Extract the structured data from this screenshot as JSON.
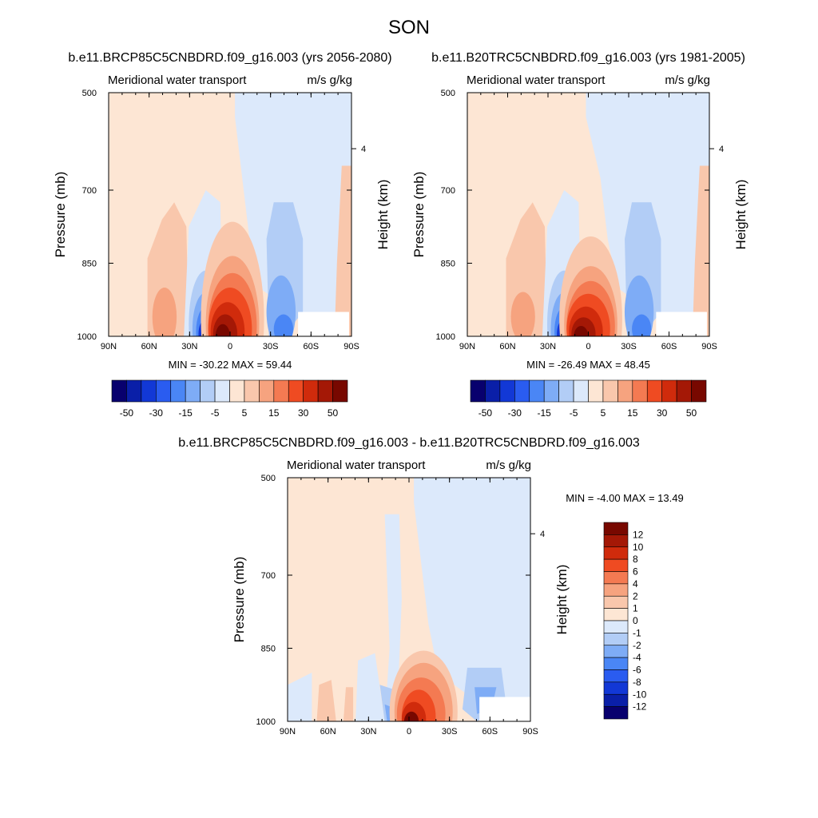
{
  "main_title": "SON",
  "chart_data": [
    {
      "type": "heatmap",
      "title": "b.e11.BRCP85C5CNBDRD.f09_g16.003 (yrs 2056-2080)",
      "left_label": "Meridional water transport",
      "right_label": "m/s g/kg",
      "ylabel": "Pressure (mb)",
      "ylabel_right": "Height (km)",
      "y_ticks": [
        "500",
        "700",
        "850",
        "1000"
      ],
      "y_right_ticks": [
        "4"
      ],
      "x_ticks": [
        "90N",
        "60N",
        "30N",
        "0",
        "30S",
        "60S",
        "90S"
      ],
      "stats": "MIN = -30.22  MAX =  59.44",
      "min": -30.22,
      "max": 59.44
    },
    {
      "type": "heatmap",
      "title": "b.e11.B20TRC5CNBDRD.f09_g16.003 (yrs 1981-2005)",
      "left_label": "Meridional water transport",
      "right_label": "m/s g/kg",
      "ylabel": "Pressure (mb)",
      "ylabel_right": "Height (km)",
      "y_ticks": [
        "500",
        "700",
        "850",
        "1000"
      ],
      "y_right_ticks": [
        "4"
      ],
      "x_ticks": [
        "90N",
        "60N",
        "30N",
        "0",
        "30S",
        "60S",
        "90S"
      ],
      "stats": "MIN = -26.49  MAX =  48.45",
      "min": -26.49,
      "max": 48.45
    },
    {
      "type": "heatmap",
      "title": "b.e11.BRCP85C5CNBDRD.f09_g16.003 - b.e11.B20TRC5CNBDRD.f09_g16.003",
      "left_label": "Meridional water transport",
      "right_label": "m/s g/kg",
      "ylabel": "Pressure (mb)",
      "ylabel_right": "Height (km)",
      "y_ticks": [
        "500",
        "700",
        "850",
        "1000"
      ],
      "y_right_ticks": [
        "4"
      ],
      "x_ticks": [
        "90N",
        "60N",
        "30N",
        "0",
        "30S",
        "60S",
        "90S"
      ],
      "stats": "MIN =  -4.00  MAX =  13.49",
      "min": -4.0,
      "max": 13.49
    }
  ],
  "colorbar_top": {
    "labels": [
      "-50",
      "-30",
      "-15",
      "-5",
      "5",
      "15",
      "30",
      "50"
    ],
    "colors": [
      "#08006e",
      "#0a1fa8",
      "#1238d6",
      "#2a5cf0",
      "#4a86f5",
      "#7eacf6",
      "#b2cdf6",
      "#dce9fb",
      "#fde6d4",
      "#f9c7ac",
      "#f6a37f",
      "#f47a52",
      "#ef4b22",
      "#d02b0c",
      "#a41806",
      "#780800"
    ]
  },
  "colorbar_diff": {
    "labels": [
      "12",
      "10",
      "8",
      "6",
      "4",
      "2",
      "1",
      "0",
      "-1",
      "-2",
      "-4",
      "-6",
      "-8",
      "-10",
      "-12"
    ],
    "colors": [
      "#780800",
      "#a41806",
      "#d02b0c",
      "#ef4b22",
      "#f47a52",
      "#f6a37f",
      "#f9c7ac",
      "#fde6d4",
      "#dce9fb",
      "#b2cdf6",
      "#7eacf6",
      "#4a86f5",
      "#2a5cf0",
      "#1238d6",
      "#0a1fa8",
      "#08006e"
    ]
  }
}
